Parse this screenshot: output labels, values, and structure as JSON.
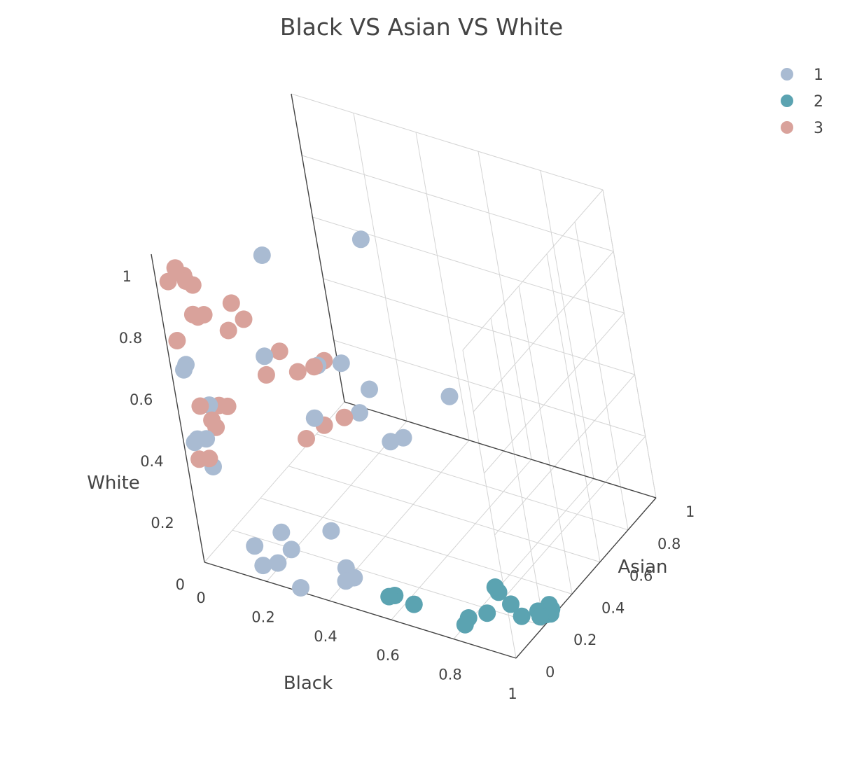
{
  "chart_data": {
    "type": "scatter3d",
    "title": "Black VS Asian VS White",
    "axes": {
      "x": {
        "label": "Black",
        "range": [
          0,
          1
        ],
        "ticks": [
          "0",
          "0.2",
          "0.4",
          "0.6",
          "0.8",
          "1"
        ],
        "tick_values": [
          0,
          0.2,
          0.4,
          0.6,
          0.8,
          1
        ]
      },
      "y": {
        "label": "Asian",
        "range": [
          0,
          1
        ],
        "ticks": [
          "0",
          "0.2",
          "0.4",
          "0.6",
          "0.8",
          "1"
        ],
        "tick_values": [
          0,
          0.2,
          0.4,
          0.6,
          0.8,
          1
        ]
      },
      "z": {
        "label": "White",
        "range": [
          0,
          1
        ],
        "ticks": [
          "0",
          "0.2",
          "0.4",
          "0.6",
          "0.8",
          "1"
        ],
        "tick_values": [
          0,
          0.2,
          0.4,
          0.6,
          0.8,
          1
        ]
      }
    },
    "grid": true,
    "legend_position": "top-right",
    "series": [
      {
        "name": "1",
        "color": "#a9bbd2",
        "points": [
          [
            0.3,
            0.02,
            0.0
          ],
          [
            0.18,
            0.03,
            0.03
          ],
          [
            0.22,
            0.05,
            0.04
          ],
          [
            0.2,
            0.18,
            0.01
          ],
          [
            0.14,
            0.07,
            0.06
          ],
          [
            0.3,
            0.26,
            0.06
          ],
          [
            0.21,
            0.12,
            0.1
          ],
          [
            0.47,
            0.05,
            0.07
          ],
          [
            0.44,
            0.05,
            0.05
          ],
          [
            0.42,
            0.1,
            0.06
          ],
          [
            0.08,
            0.01,
            0.33
          ],
          [
            0.02,
            0.05,
            0.38
          ],
          [
            0.05,
            0.05,
            0.39
          ],
          [
            0.04,
            0.12,
            0.46
          ],
          [
            0.02,
            0.03,
            0.38
          ],
          [
            0.02,
            0.04,
            0.61
          ],
          [
            0.03,
            0.04,
            0.63
          ],
          [
            0.21,
            0.2,
            0.63
          ],
          [
            0.38,
            0.41,
            0.39
          ],
          [
            0.27,
            0.33,
            0.38
          ],
          [
            0.4,
            0.53,
            0.24
          ],
          [
            0.44,
            0.54,
            0.26
          ],
          [
            0.49,
            0.77,
            0.29
          ],
          [
            0.3,
            0.35,
            0.55
          ],
          [
            0.41,
            0.44,
            0.46
          ],
          [
            0.25,
            0.22,
            0.96
          ],
          [
            0.33,
            0.44,
            0.52
          ],
          [
            0.31,
            0.72,
            0.77
          ]
        ]
      },
      {
        "name": "2",
        "color": "#5ba3b1",
        "points": [
          [
            0.6,
            0.01,
            0.07
          ],
          [
            0.62,
            0.01,
            0.08
          ],
          [
            0.68,
            0.01,
            0.07
          ],
          [
            0.83,
            0.03,
            0.04
          ],
          [
            0.84,
            0.04,
            0.06
          ],
          [
            0.86,
            0.12,
            0.04
          ],
          [
            0.9,
            0.14,
            0.11
          ],
          [
            0.88,
            0.16,
            0.11
          ],
          [
            0.9,
            0.2,
            0.04
          ],
          [
            0.93,
            0.2,
            0.01
          ],
          [
            0.96,
            0.25,
            0.01
          ],
          [
            0.98,
            0.26,
            0.0
          ],
          [
            0.97,
            0.24,
            0.0
          ],
          [
            0.99,
            0.25,
            0.01
          ],
          [
            0.98,
            0.26,
            0.01
          ],
          [
            0.99,
            0.27,
            0.03
          ],
          [
            0.99,
            0.27,
            0.0
          ],
          [
            0.99,
            0.28,
            0.01
          ]
        ]
      },
      {
        "name": "3",
        "color": "#d9a29b",
        "points": [
          [
            0.03,
            0.02,
            0.91
          ],
          [
            0.05,
            0.04,
            0.95
          ],
          [
            0.08,
            0.03,
            0.94
          ],
          [
            0.1,
            0.04,
            0.91
          ],
          [
            0.09,
            0.02,
            0.93
          ],
          [
            0.11,
            0.02,
            0.82
          ],
          [
            0.1,
            0.01,
            0.83
          ],
          [
            0.12,
            0.04,
            0.82
          ],
          [
            0.16,
            0.1,
            0.75
          ],
          [
            0.18,
            0.11,
            0.84
          ],
          [
            0.19,
            0.15,
            0.77
          ],
          [
            0.02,
            0.03,
            0.71
          ],
          [
            0.27,
            0.19,
            0.67
          ],
          [
            0.24,
            0.14,
            0.61
          ],
          [
            0.28,
            0.26,
            0.57
          ],
          [
            0.31,
            0.31,
            0.57
          ],
          [
            0.33,
            0.34,
            0.58
          ],
          [
            0.06,
            0.03,
            0.51
          ],
          [
            0.08,
            0.05,
            0.46
          ],
          [
            0.09,
            0.05,
            0.44
          ],
          [
            0.09,
            0.09,
            0.49
          ],
          [
            0.13,
            0.07,
            0.51
          ],
          [
            0.31,
            0.31,
            0.38
          ],
          [
            0.02,
            0.04,
            0.32
          ],
          [
            0.06,
            0.03,
            0.34
          ],
          [
            0.36,
            0.35,
            0.4
          ],
          [
            0.27,
            0.26,
            0.35
          ]
        ]
      }
    ]
  }
}
